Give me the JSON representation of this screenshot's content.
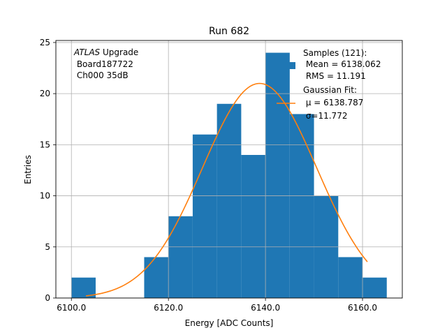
{
  "chart_data": {
    "type": "bar",
    "title": "Run 682",
    "xlabel": "Energy [ADC Counts]",
    "ylabel": "Entries",
    "xlim": [
      6096.8,
      6168.2
    ],
    "ylim": [
      0,
      25.2
    ],
    "x_ticks": [
      6100,
      6120,
      6140,
      6160
    ],
    "x_tick_labels": [
      "6100.0",
      "6120.0",
      "6140.0",
      "6160.0"
    ],
    "y_ticks": [
      0,
      5,
      10,
      15,
      20,
      25
    ],
    "y_tick_labels": [
      "0",
      "5",
      "10",
      "15",
      "20",
      "25"
    ],
    "grid": true,
    "histogram": {
      "name": "Samples (121)",
      "color": "#1f77b4",
      "bin_edges": [
        6100.0,
        6105.0,
        6110.0,
        6115.0,
        6120.0,
        6125.0,
        6130.0,
        6135.0,
        6140.0,
        6145.0,
        6150.0,
        6155.0,
        6160.0,
        6165.0
      ],
      "counts": [
        2,
        0,
        0,
        4,
        8,
        16,
        19,
        14,
        24,
        18,
        10,
        4,
        2
      ]
    },
    "fit": {
      "name": "Gaussian Fit",
      "color": "#ff7f0e",
      "amplitude": 21.0,
      "mu": 6138.787,
      "sigma": 11.772,
      "x_range": [
        6103.0,
        6161.0
      ]
    },
    "annotation": {
      "italic": "ATLAS",
      "line1_rest": " Upgrade",
      "line2": " Board187722",
      "line3": " Ch000 35dB"
    },
    "legend": {
      "position": "top-right",
      "hist_line1": "Samples (121):",
      "hist_line2": " Mean = 6138.062",
      "hist_line3": " RMS = 11.191",
      "fit_line1": "Gaussian Fit:",
      "fit_line2": " μ = 6138.787",
      "fit_line3": " σ=11.772"
    }
  }
}
